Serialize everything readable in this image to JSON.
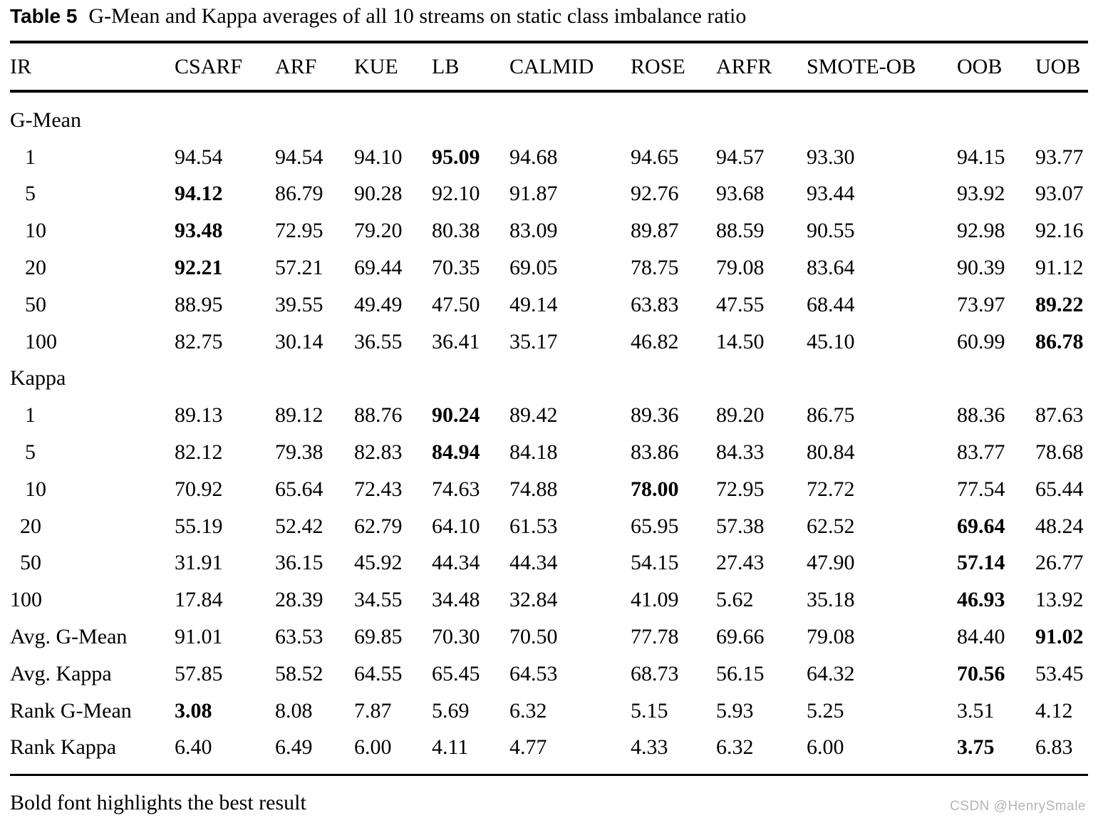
{
  "title": {
    "label": "Table 5",
    "caption": "G-Mean and Kappa averages of all 10 streams on static class imbalance ratio"
  },
  "footer": {
    "note": "Bold font highlights the best result"
  },
  "watermark": "CSDN @HenrySmale",
  "table": {
    "header": [
      "IR",
      "CSARF",
      "ARF",
      "KUE",
      "LB",
      "CALMID",
      "ROSE",
      "ARFR",
      "SMOTE-OB",
      "OOB",
      "UOB"
    ],
    "bold_meaning": "best result",
    "sections": [
      {
        "label": "G-Mean",
        "rows": [
          {
            "ir": "1",
            "values": [
              "94.54",
              "94.54",
              "94.10",
              "95.09",
              "94.68",
              "94.65",
              "94.57",
              "93.30",
              "94.15",
              "93.77"
            ],
            "best": 3
          },
          {
            "ir": "5",
            "values": [
              "94.12",
              "86.79",
              "90.28",
              "92.10",
              "91.87",
              "92.76",
              "93.68",
              "93.44",
              "93.92",
              "93.07"
            ],
            "best": 0
          },
          {
            "ir": "10",
            "values": [
              "93.48",
              "72.95",
              "79.20",
              "80.38",
              "83.09",
              "89.87",
              "88.59",
              "90.55",
              "92.98",
              "92.16"
            ],
            "best": 0
          },
          {
            "ir": "20",
            "values": [
              "92.21",
              "57.21",
              "69.44",
              "70.35",
              "69.05",
              "78.75",
              "79.08",
              "83.64",
              "90.39",
              "91.12"
            ],
            "best": 0
          },
          {
            "ir": "50",
            "values": [
              "88.95",
              "39.55",
              "49.49",
              "47.50",
              "49.14",
              "63.83",
              "47.55",
              "68.44",
              "73.97",
              "89.22"
            ],
            "best": 9
          },
          {
            "ir": "100",
            "values": [
              "82.75",
              "30.14",
              "36.55",
              "36.41",
              "35.17",
              "46.82",
              "14.50",
              "45.10",
              "60.99",
              "86.78"
            ],
            "best": 9
          }
        ]
      },
      {
        "label": "Kappa",
        "rows": [
          {
            "ir": "1",
            "values": [
              "89.13",
              "89.12",
              "88.76",
              "90.24",
              "89.42",
              "89.36",
              "89.20",
              "86.75",
              "88.36",
              "87.63"
            ],
            "best": 3
          },
          {
            "ir": "5",
            "values": [
              "82.12",
              "79.38",
              "82.83",
              "84.94",
              "84.18",
              "83.86",
              "84.33",
              "80.84",
              "83.77",
              "78.68"
            ],
            "best": 3
          },
          {
            "ir": "10",
            "values": [
              "70.92",
              "65.64",
              "72.43",
              "74.63",
              "74.88",
              "78.00",
              "72.95",
              "72.72",
              "77.54",
              "65.44"
            ],
            "best": 5
          },
          {
            "ir": "20",
            "values": [
              "55.19",
              "52.42",
              "62.79",
              "64.10",
              "61.53",
              "65.95",
              "57.38",
              "62.52",
              "69.64",
              "48.24"
            ],
            "best": 8
          },
          {
            "ir": "50",
            "values": [
              "31.91",
              "36.15",
              "45.92",
              "44.34",
              "44.34",
              "54.15",
              "27.43",
              "47.90",
              "57.14",
              "26.77"
            ],
            "best": 8
          },
          {
            "ir": "100",
            "values": [
              "17.84",
              "28.39",
              "34.55",
              "34.48",
              "32.84",
              "41.09",
              "5.62",
              "35.18",
              "46.93",
              "13.92"
            ],
            "best": 8
          }
        ]
      }
    ],
    "summary": [
      {
        "label": "Avg. G-Mean",
        "values": [
          "91.01",
          "63.53",
          "69.85",
          "70.30",
          "70.50",
          "77.78",
          "69.66",
          "79.08",
          "84.40",
          "91.02"
        ],
        "best": 9
      },
      {
        "label": "Avg. Kappa",
        "values": [
          "57.85",
          "58.52",
          "64.55",
          "65.45",
          "64.53",
          "68.73",
          "56.15",
          "64.32",
          "70.56",
          "53.45"
        ],
        "best": 8
      },
      {
        "label": "Rank G-Mean",
        "values": [
          "3.08",
          "8.08",
          "7.87",
          "5.69",
          "6.32",
          "5.15",
          "5.93",
          "5.25",
          "3.51",
          "4.12"
        ],
        "best": 0
      },
      {
        "label": "Rank Kappa",
        "values": [
          "6.40",
          "6.49",
          "6.00",
          "4.11",
          "4.77",
          "4.33",
          "6.32",
          "6.00",
          "3.75",
          "6.83"
        ],
        "best": 8
      }
    ]
  }
}
